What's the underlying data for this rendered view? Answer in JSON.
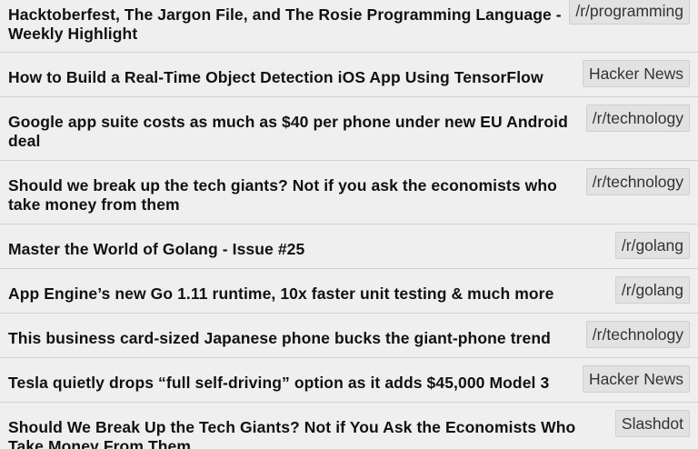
{
  "feed": {
    "items": [
      {
        "title": "Hacktoberfest, The Jargon File, and The Rosie Programming Language - Weekly Highlight",
        "source": "/r/programming"
      },
      {
        "title": "How to Build a Real-Time Object Detection iOS App Using TensorFlow",
        "source": "Hacker News"
      },
      {
        "title": "Google app suite costs as much as $40 per phone under new EU Android deal",
        "source": "/r/technology"
      },
      {
        "title": "Should we break up the tech giants? Not if you ask the economists who take money from them",
        "source": "/r/technology"
      },
      {
        "title": "Master the World of Golang - Issue #25",
        "source": "/r/golang"
      },
      {
        "title": "App Engine’s new Go 1.11 runtime, 10x faster unit testing & much more",
        "source": "/r/golang"
      },
      {
        "title": "This business card-sized Japanese phone bucks the giant-phone trend",
        "source": "/r/technology"
      },
      {
        "title": "Tesla quietly drops “full self-driving” option as it adds $45,000 Model 3",
        "source": "Hacker News"
      },
      {
        "title": "Should We Break Up the Tech Giants? Not if You Ask the Economists Who Take Money From Them",
        "source": "Slashdot"
      }
    ]
  }
}
